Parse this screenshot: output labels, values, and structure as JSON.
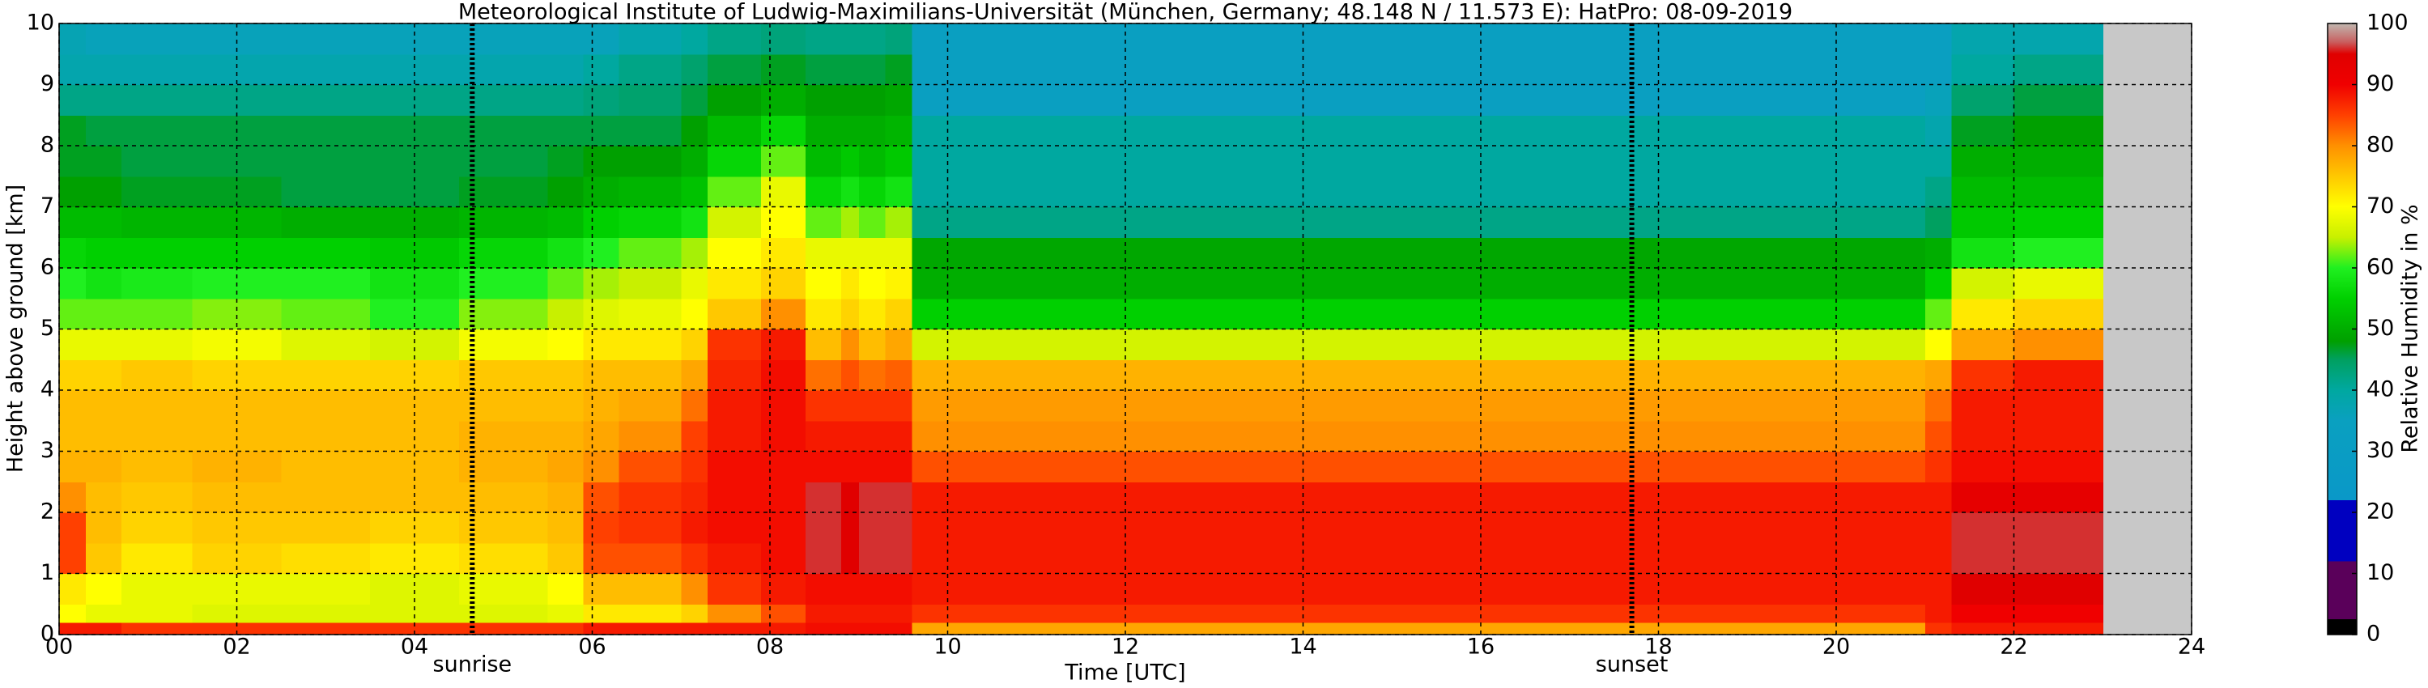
{
  "chart_data": {
    "type": "heatmap",
    "title": "Meteorological Institute of Ludwig-Maximilians-Universität (München, Germany; 48.148 N / 11.573 E):    HatPro: 08-09-2019",
    "xlabel": "Time [UTC]",
    "ylabel": "Height above ground [km]",
    "colorbar_label": "Relative Humidity in %",
    "xlim": [
      0,
      24
    ],
    "ylim": [
      0,
      10
    ],
    "xticks": [
      {
        "value": 0,
        "label": "00"
      },
      {
        "value": 2,
        "label": "02"
      },
      {
        "value": 4,
        "label": "04"
      },
      {
        "value": 6,
        "label": "06"
      },
      {
        "value": 8,
        "label": "08"
      },
      10,
      12,
      14,
      16,
      18,
      20,
      22,
      24
    ],
    "yticks": [
      0,
      1,
      2,
      3,
      4,
      5,
      6,
      7,
      8,
      9,
      10
    ],
    "clim": [
      0,
      100
    ],
    "cticks": [
      0,
      10,
      20,
      30,
      40,
      50,
      60,
      70,
      80,
      90,
      100
    ],
    "grid": true,
    "background": "#c8c8c8",
    "colorscale": [
      [
        0,
        "#000000"
      ],
      [
        2.5,
        "#000000"
      ],
      [
        2.5,
        "#5a005a"
      ],
      [
        12,
        "#5a005a"
      ],
      [
        12,
        "#0000c0"
      ],
      [
        22,
        "#0000c0"
      ],
      [
        22,
        "#0a98c8"
      ],
      [
        35,
        "#0aa0c0"
      ],
      [
        40,
        "#00a8a0"
      ],
      [
        45,
        "#00a060"
      ],
      [
        48,
        "#00a000"
      ],
      [
        55,
        "#00d000"
      ],
      [
        60,
        "#20f020"
      ],
      [
        65,
        "#c8f000"
      ],
      [
        70,
        "#ffff00"
      ],
      [
        75,
        "#ffc800"
      ],
      [
        80,
        "#ff9000"
      ],
      [
        85,
        "#ff4000"
      ],
      [
        90,
        "#f00000"
      ],
      [
        95,
        "#e00000"
      ],
      [
        97,
        "#c86060"
      ],
      [
        100,
        "#c0b8b0"
      ]
    ],
    "annotations": [
      {
        "text": "sunrise",
        "x": 4.65
      },
      {
        "text": "sunset",
        "x": 17.7
      }
    ],
    "xbins": [
      0,
      0.3,
      0.7,
      1.5,
      2.5,
      3.5,
      4.5,
      5.5,
      5.9,
      6.3,
      7.0,
      7.3,
      7.9,
      8.4,
      8.8,
      9.0,
      9.3,
      9.6,
      21.0,
      21.3,
      22.0,
      23.0
    ],
    "ybins": [
      0,
      0.2,
      0.5,
      1,
      1.5,
      2,
      2.5,
      3,
      3.5,
      4,
      4.5,
      5,
      5.5,
      6,
      6.5,
      7,
      7.5,
      8,
      8.5,
      9,
      9.5,
      10
    ],
    "values": [
      [
        88,
        70,
        72,
        85,
        85,
        80,
        77,
        76,
        76,
        74,
        68,
        62,
        60,
        56,
        52,
        48,
        47,
        47,
        42,
        38,
        37
      ],
      [
        88,
        68,
        70,
        75,
        76,
        76,
        77,
        76,
        76,
        74,
        68,
        62,
        58,
        55,
        52,
        48,
        47,
        46,
        42,
        38,
        36
      ],
      [
        86,
        68,
        68,
        72,
        74,
        75,
        76,
        76,
        76,
        75,
        68,
        62,
        59,
        55,
        51,
        47,
        46,
        46,
        42,
        38,
        36
      ],
      [
        86,
        67,
        68,
        74,
        75,
        76,
        77,
        76,
        76,
        74,
        69,
        63,
        60,
        55,
        51,
        47,
        46,
        46,
        42,
        38,
        36
      ],
      [
        86,
        67,
        68,
        73,
        75,
        76,
        76,
        76,
        76,
        74,
        67,
        62,
        60,
        55,
        50,
        46,
        46,
        46,
        42,
        38,
        36
      ],
      [
        86,
        67,
        67,
        72,
        74,
        76,
        76,
        76,
        76,
        74,
        66,
        60,
        58,
        54,
        50,
        46,
        46,
        46,
        42,
        38,
        36
      ],
      [
        86,
        67,
        68,
        73,
        75,
        76,
        77,
        77,
        76,
        75,
        69,
        63,
        60,
        56,
        51,
        47,
        46,
        46,
        42,
        38,
        36
      ],
      [
        86,
        68,
        70,
        75,
        76,
        77,
        78,
        77,
        76,
        75,
        70,
        65,
        62,
        58,
        52,
        48,
        47,
        46,
        42,
        38,
        36
      ],
      [
        88,
        72,
        76,
        84,
        85,
        84,
        80,
        78,
        77,
        76,
        72,
        67,
        64,
        60,
        55,
        50,
        48,
        46,
        43,
        40,
        36
      ],
      [
        88,
        72,
        76,
        84,
        86,
        86,
        84,
        80,
        78,
        76,
        72,
        68,
        65,
        62,
        56,
        51,
        48,
        46,
        44,
        42,
        38
      ],
      [
        88,
        74,
        80,
        86,
        88,
        87,
        86,
        85,
        82,
        78,
        74,
        70,
        68,
        64,
        58,
        53,
        50,
        48,
        46,
        44,
        40
      ],
      [
        88,
        80,
        86,
        88,
        89,
        89,
        89,
        88,
        88,
        87,
        86,
        75,
        72,
        70,
        66,
        62,
        56,
        52,
        48,
        46,
        42
      ],
      [
        88,
        84,
        88,
        89,
        89,
        89,
        89,
        89,
        89,
        89,
        88,
        80,
        74,
        72,
        70,
        68,
        62,
        56,
        50,
        47,
        43
      ],
      [
        89,
        88,
        89,
        96,
        96,
        96,
        89,
        88,
        86,
        82,
        76,
        72,
        70,
        68,
        62,
        56,
        52,
        50,
        48,
        46,
        42
      ],
      [
        89,
        88,
        89,
        95,
        95,
        95,
        89,
        88,
        86,
        84,
        80,
        74,
        72,
        68,
        64,
        58,
        54,
        50,
        48,
        46,
        42
      ],
      [
        89,
        88,
        89,
        96,
        96,
        96,
        89,
        88,
        86,
        82,
        76,
        72,
        70,
        68,
        62,
        56,
        52,
        50,
        48,
        46,
        42
      ],
      [
        89,
        88,
        89,
        96,
        96,
        96,
        89,
        88,
        86,
        83,
        78,
        74,
        71,
        68,
        64,
        58,
        54,
        51,
        49,
        47,
        43
      ],
      [
        78,
        86,
        88,
        88,
        88,
        88,
        84,
        80,
        79,
        77,
        66,
        55,
        50,
        49,
        42,
        40,
        40,
        40,
        34,
        33,
        33
      ],
      [
        86,
        88,
        88,
        88,
        88,
        88,
        86,
        84,
        82,
        78,
        70,
        62,
        55,
        50,
        45,
        42,
        40,
        38,
        36,
        34,
        33
      ],
      [
        88,
        90,
        95,
        96,
        96,
        93,
        89,
        88,
        88,
        86,
        78,
        72,
        66,
        58,
        54,
        52,
        50,
        47,
        44,
        40,
        38
      ],
      [
        88,
        90,
        95,
        96,
        96,
        93,
        89,
        88,
        88,
        88,
        80,
        74,
        68,
        60,
        55,
        52,
        50,
        48,
        46,
        42,
        38
      ]
    ]
  }
}
